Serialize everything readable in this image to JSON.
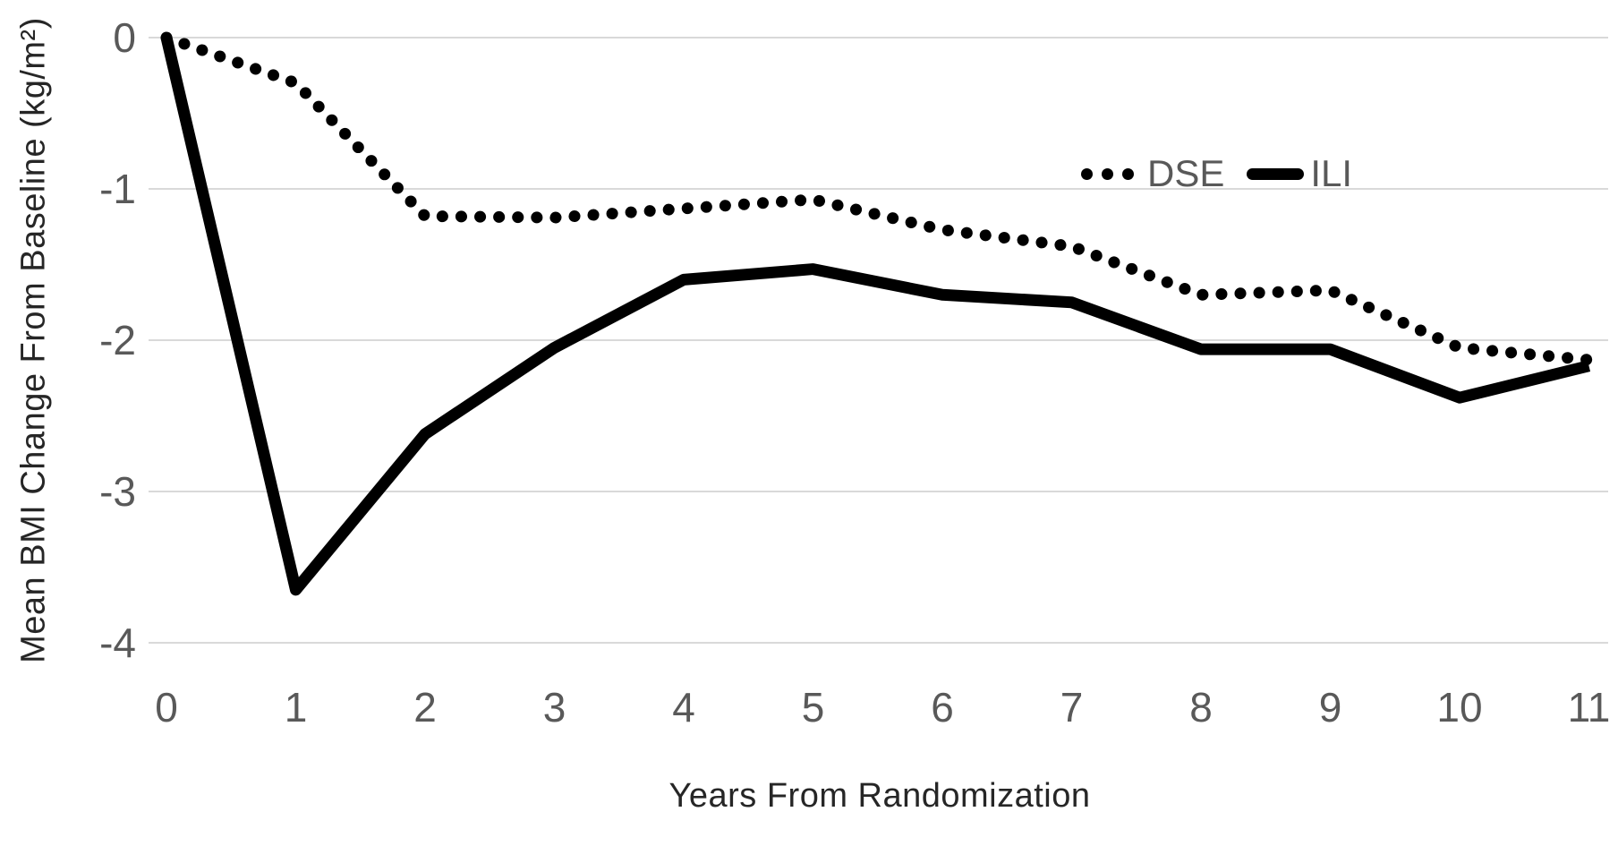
{
  "chart_data": {
    "type": "line",
    "title": "",
    "xlabel": "Years From Randomization",
    "ylabel": "Mean BMI Change From Baseline (kg/m²)",
    "x": [
      0,
      1,
      2,
      3,
      4,
      5,
      6,
      7,
      8,
      9,
      10,
      11
    ],
    "xtick_labels": [
      "0",
      "1",
      "2",
      "3",
      "4",
      "5",
      "6",
      "7",
      "8",
      "9",
      "10",
      "11"
    ],
    "ytick_values": [
      0,
      -1,
      -2,
      -3,
      -4
    ],
    "ytick_labels": [
      "0",
      "-1",
      "-2",
      "-3",
      "-4"
    ],
    "xlim": [
      0,
      11
    ],
    "ylim": [
      -4,
      0
    ],
    "grid": "horizontal",
    "legend": {
      "position": "inside-top-right",
      "entries": [
        "DSE",
        "ILI"
      ]
    },
    "colors": {
      "line": "#000000",
      "grid": "#d9d9d9",
      "tick_label": "#595959",
      "axis_title": "#262626",
      "legend_text": "#595959",
      "background": "#ffffff"
    },
    "series": [
      {
        "name": "DSE",
        "style": "dotted",
        "values": [
          0,
          -0.3,
          -1.18,
          -1.19,
          -1.13,
          -1.07,
          -1.27,
          -1.38,
          -1.7,
          -1.67,
          -2.05,
          -2.13
        ]
      },
      {
        "name": "ILI",
        "style": "solid",
        "values": [
          0,
          -3.65,
          -2.62,
          -2.05,
          -1.6,
          -1.53,
          -1.7,
          -1.75,
          -2.06,
          -2.06,
          -2.38,
          -2.17
        ]
      }
    ]
  }
}
